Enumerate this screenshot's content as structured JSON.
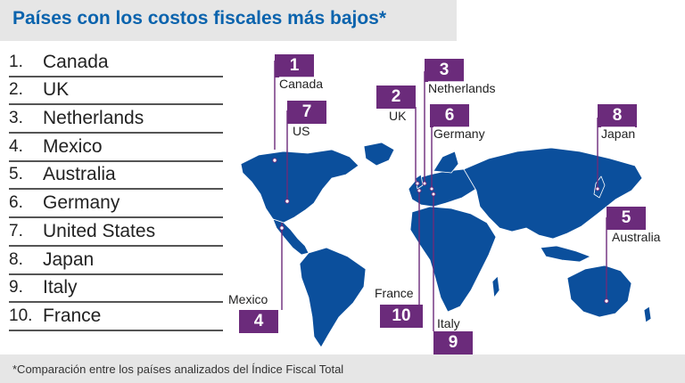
{
  "header": {
    "title": "Países con los costos fiscales más bajos*"
  },
  "ranking": [
    {
      "num": "1.",
      "name": "Canada"
    },
    {
      "num": "2.",
      "name": "UK"
    },
    {
      "num": "3.",
      "name": "Netherlands"
    },
    {
      "num": "4.",
      "name": "Mexico"
    },
    {
      "num": "5.",
      "name": "Australia"
    },
    {
      "num": "6.",
      "name": "Germany"
    },
    {
      "num": "7.",
      "name": "United States"
    },
    {
      "num": "8.",
      "name": "Japan"
    },
    {
      "num": "9.",
      "name": "Italy"
    },
    {
      "num": "10.",
      "name": "France"
    }
  ],
  "map_markers": [
    {
      "rank": "1",
      "label": "Canada"
    },
    {
      "rank": "7",
      "label": "US"
    },
    {
      "rank": "2",
      "label": "UK"
    },
    {
      "rank": "3",
      "label": "Netherlands"
    },
    {
      "rank": "6",
      "label": "Germany"
    },
    {
      "rank": "8",
      "label": "Japan"
    },
    {
      "rank": "5",
      "label": "Australia"
    },
    {
      "rank": "4",
      "label": "Mexico"
    },
    {
      "rank": "10",
      "label": "France"
    },
    {
      "rank": "9",
      "label": "Italy"
    }
  ],
  "footnote": "*Comparación entre los países analizados del Índice Fiscal Total",
  "colors": {
    "title": "#0a63ad",
    "land": "#0b4f9c",
    "marker": "#6b2b7b",
    "band": "#e6e6e6"
  }
}
